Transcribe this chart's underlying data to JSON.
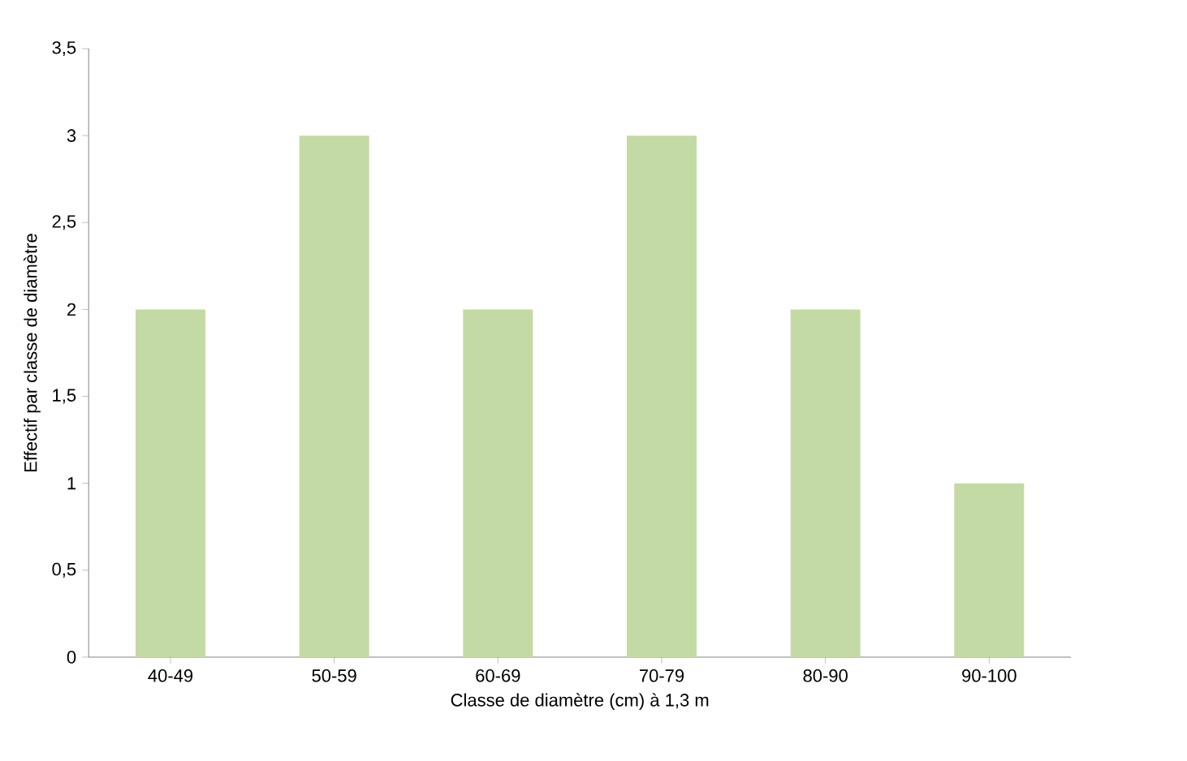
{
  "chart_data": {
    "type": "bar",
    "xlabel": "Classe de diamètre (cm) à 1,3 m",
    "ylabel": "Effectif par classe de diamètre",
    "categories": [
      "40-49",
      "50-59",
      "60-69",
      "70-79",
      "80-90",
      "90-100"
    ],
    "values": [
      2,
      3,
      2,
      3,
      2,
      1
    ],
    "color": "#c4daa4",
    "ylim": [
      0,
      3.5
    ],
    "yticks": [
      0,
      {
        "value": 0.5,
        "label": "0,5"
      },
      1,
      {
        "value": 1.5,
        "label": "1,5"
      },
      2,
      {
        "value": 2.5,
        "label": "2,5"
      },
      3,
      {
        "value": 3.5,
        "label": "3,5"
      }
    ],
    "grid": false
  }
}
